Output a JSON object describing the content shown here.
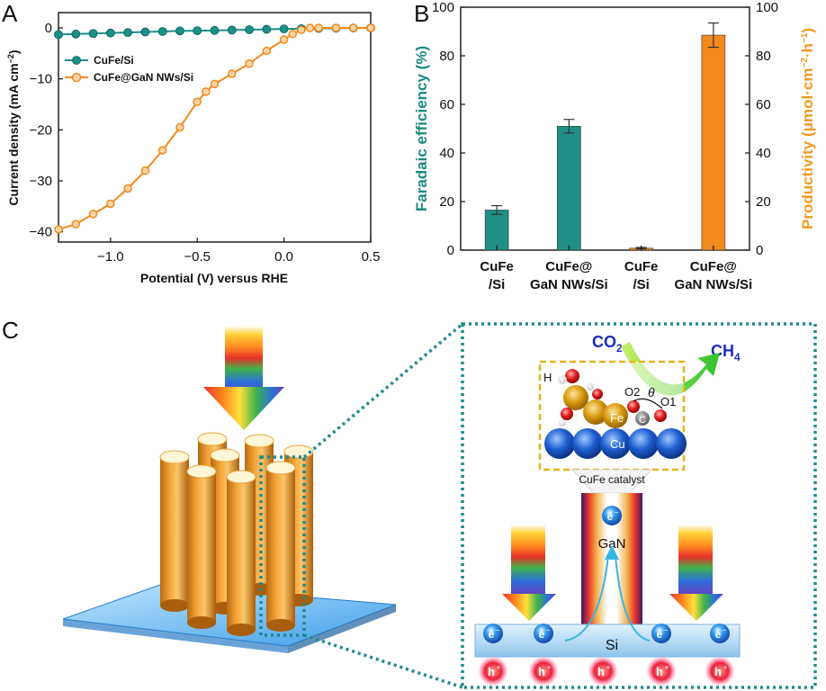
{
  "panels": {
    "a": {
      "letter": "A"
    },
    "b": {
      "letter": "B"
    },
    "c": {
      "letter": "C"
    }
  },
  "chart_data": [
    {
      "type": "line",
      "panel": "A",
      "xlabel": "Potential (V) versus RHE",
      "ylabel": "Current density (mA cm",
      "ylabel_sup": "−2",
      "ylabel_end": ")",
      "xlim": [
        -1.3,
        0.5
      ],
      "ylim": [
        -42,
        3
      ],
      "xticks": [
        -1.0,
        -0.5,
        0.0,
        0.5
      ],
      "xtick_labels": [
        "−1.0",
        "−0.5",
        "0.0",
        "0.5"
      ],
      "yticks": [
        0,
        -10,
        -20,
        -30,
        -40
      ],
      "ytick_labels": [
        "0",
        "−10",
        "−20",
        "−30",
        "−40"
      ],
      "legend_position": "top-left",
      "grid": false,
      "series": [
        {
          "name": "CuFe/Si",
          "color": "#1a9088",
          "x": [
            -1.3,
            -1.2,
            -1.1,
            -1.0,
            -0.9,
            -0.8,
            -0.7,
            -0.6,
            -0.5,
            -0.4,
            -0.3,
            -0.2,
            -0.1,
            0.0,
            0.1,
            0.2,
            0.3,
            0.4,
            0.5
          ],
          "y": [
            -1.3,
            -1.2,
            -1.1,
            -1.0,
            -0.9,
            -0.8,
            -0.7,
            -0.6,
            -0.55,
            -0.5,
            -0.42,
            -0.35,
            -0.28,
            -0.2,
            -0.15,
            -0.1,
            -0.06,
            -0.03,
            0
          ]
        },
        {
          "name": "CuFe@GaN NWs/Si",
          "color": "#f28a1e",
          "x": [
            -1.3,
            -1.2,
            -1.1,
            -1.0,
            -0.9,
            -0.8,
            -0.7,
            -0.6,
            -0.5,
            -0.45,
            -0.4,
            -0.3,
            -0.2,
            -0.1,
            0.0,
            0.05,
            0.1,
            0.15,
            0.2,
            0.3,
            0.4,
            0.5
          ],
          "y": [
            -39.5,
            -38.5,
            -36.5,
            -34.5,
            -31.5,
            -28,
            -24,
            -19.5,
            -14.5,
            -12.5,
            -11,
            -9,
            -7,
            -4.5,
            -2.3,
            -1.2,
            -0.4,
            0,
            0,
            0,
            0,
            0
          ]
        }
      ]
    },
    {
      "type": "bar",
      "panel": "B",
      "ylabel_left": "Faradaic efficiency (%)",
      "ylabel_right": "Productivity (μmol·cm",
      "ylabel_right_sup1": "−2",
      "ylabel_right_mid": "·h",
      "ylabel_right_sup2": "−1",
      "ylabel_right_end": ")",
      "ylim_left": [
        0,
        100
      ],
      "ylim_right": [
        0,
        100
      ],
      "yticks": [
        0,
        20,
        40,
        60,
        80,
        100
      ],
      "ytick_labels": [
        "0",
        "20",
        "40",
        "60",
        "80",
        "100"
      ],
      "left_axis_color": "#1a8a80",
      "right_axis_color": "#f39a21",
      "categories": [
        [
          "CuFe",
          "/Si"
        ],
        [
          "CuFe@",
          "GaN NWs/Si"
        ],
        [
          "CuFe",
          "/Si"
        ],
        [
          "CuFe@",
          "GaN NWs/Si"
        ]
      ],
      "bars": [
        {
          "value": 16.5,
          "error": 1.8,
          "axis": "left",
          "color": "#1f8f86"
        },
        {
          "value": 51,
          "error": 2.8,
          "axis": "left",
          "color": "#1f8f86"
        },
        {
          "value": 0.8,
          "error": 0.3,
          "axis": "right",
          "color": "#f28a1e"
        },
        {
          "value": 88.5,
          "error": 5,
          "axis": "right",
          "color": "#f28a1e"
        }
      ]
    }
  ],
  "schematic": {
    "co2_main": "CO",
    "co2_sub": "2",
    "ch4_main": "CH",
    "ch4_sub": "4",
    "catalyst_label": "CuFe catalyst",
    "atom_labels": {
      "h": "H",
      "o2": "O2",
      "theta": "θ",
      "o1": "O1",
      "c": "C",
      "fe": "Fe",
      "cu": "Cu"
    },
    "gan_label": "GaN",
    "si_label": "Si",
    "electron": "e",
    "electron_sup": "−",
    "hole": "h",
    "hole_sup": "+",
    "frame_color": "#1f8a8a",
    "inset_frame_color": "#e6b41e"
  }
}
